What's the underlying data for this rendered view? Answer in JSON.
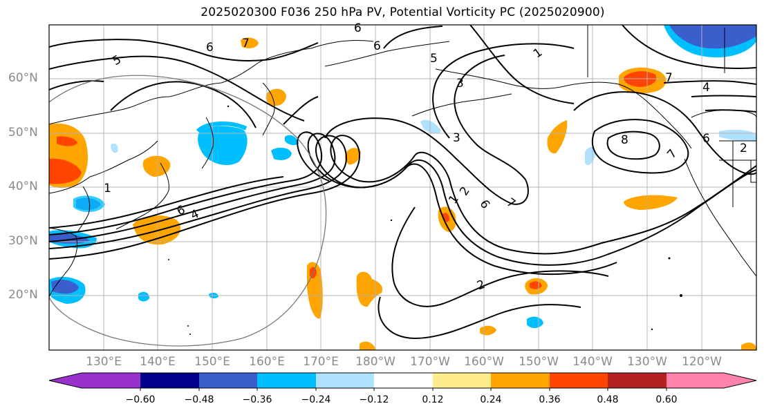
{
  "title": "2025020300 F036 250 hPa PV, Potential Vorticity PC (2025020900)",
  "lat_labels": [
    "60°N",
    "50°N",
    "40°N",
    "30°N",
    "20°N"
  ],
  "lon_labels": [
    "130°E",
    "140°E",
    "150°E",
    "160°E",
    "170°E",
    "180°W",
    "170°W",
    "160°W",
    "150°W",
    "140°W",
    "130°W",
    "120°W"
  ],
  "colorbar": {
    "ticks": [
      "−0.60",
      "−0.48",
      "−0.36",
      "−0.24",
      "−0.12",
      "0.12",
      "0.24",
      "0.36",
      "0.48",
      "0.60"
    ],
    "colors": [
      "#9932cc",
      "#00008b",
      "#3a5fcd",
      "#00bfff",
      "#b0e2ff",
      "#ffffff",
      "#ffec8b",
      "#ffa500",
      "#ff4500",
      "#b22222",
      "#ff82ab"
    ]
  },
  "contour_labels": [
    "5",
    "6",
    "7",
    "6",
    "5",
    "6",
    "1",
    "3",
    "7",
    "3",
    "8",
    "7",
    "6",
    "4",
    "2",
    "6",
    "4",
    "1",
    "1",
    "2",
    "6",
    "7",
    "2"
  ]
}
